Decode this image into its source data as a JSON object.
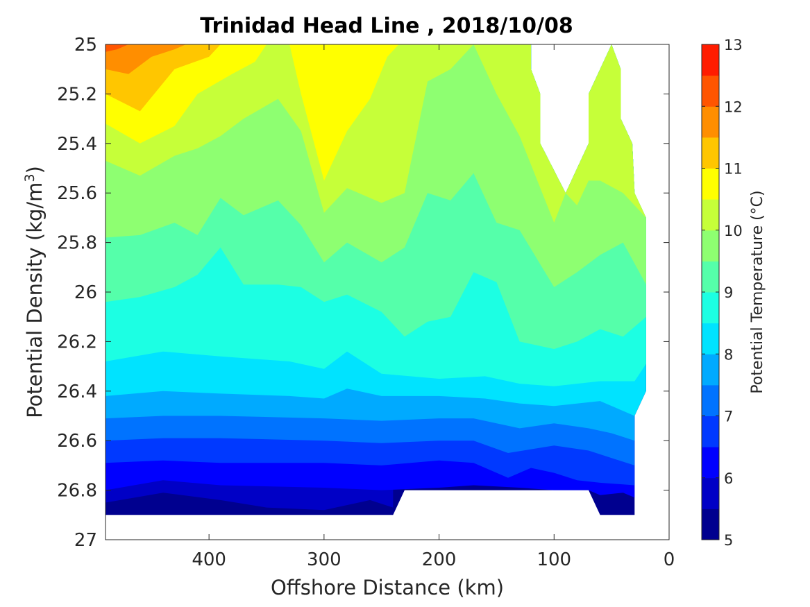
{
  "chart_data": {
    "type": "filled-contour",
    "title": "Trinidad Head Line , 2018/10/08",
    "xlabel": "Offshore Distance (km)",
    "ylabel": "Potential Density (kg/m",
    "ylabel_sup": "3",
    "ylabel_tail": ")",
    "colorbar_label": "Potential Temperature (°C)",
    "xlim": [
      490,
      0
    ],
    "ylim": [
      25,
      27
    ],
    "x_reversed": true,
    "y_reversed": true,
    "xticks": [
      400,
      300,
      200,
      100,
      0
    ],
    "xtick_labels": [
      "400",
      "300",
      "200",
      "100",
      "0"
    ],
    "yticks": [
      25,
      25.2,
      25.4,
      25.6,
      25.8,
      26,
      26.2,
      26.4,
      26.6,
      26.8,
      27
    ],
    "ytick_labels": [
      "25",
      "25.2",
      "25.4",
      "25.6",
      "25.8",
      "26",
      "26.2",
      "26.4",
      "26.6",
      "26.8",
      "27"
    ],
    "colorbar_range": [
      5,
      13
    ],
    "colorbar_ticks": [
      5,
      6,
      7,
      8,
      9,
      10,
      11,
      12,
      13
    ],
    "colorbar_tick_labels": [
      "5",
      "6",
      "7",
      "8",
      "9",
      "10",
      "11",
      "12",
      "13"
    ],
    "contour_levels": [
      5,
      5.5,
      6,
      6.5,
      7,
      7.5,
      8,
      8.5,
      9,
      9.5,
      10,
      10.5,
      11,
      11.5,
      12,
      12.5,
      13
    ],
    "level_colors": [
      "#00008f",
      "#0000c6",
      "#0000ff",
      "#0039ff",
      "#0073ff",
      "#00aaff",
      "#00e3ff",
      "#1cffe3",
      "#55ffaa",
      "#8eff71",
      "#c6ff39",
      "#ffff00",
      "#ffc600",
      "#ff8e00",
      "#ff5500",
      "#ff1c00",
      "#c60000",
      "#8f0000"
    ],
    "data_region": {
      "top_edge": [
        [
          490,
          25
        ],
        [
          120,
          25
        ],
        [
          120,
          25.1
        ],
        [
          112,
          25.2
        ],
        [
          112,
          25.4
        ],
        [
          90,
          25.6
        ],
        [
          70,
          25.4
        ],
        [
          70,
          25.2
        ],
        [
          50,
          25
        ],
        [
          42,
          25.1
        ],
        [
          42,
          25.3
        ],
        [
          32,
          25.4
        ],
        [
          30,
          25.6
        ],
        [
          20,
          25.7
        ],
        [
          20,
          26.4
        ],
        [
          30,
          26.5
        ]
      ],
      "bottom_edge": [
        [
          490,
          26.9
        ],
        [
          240,
          26.9
        ],
        [
          230,
          26.8
        ],
        [
          70,
          26.8
        ],
        [
          60,
          26.9
        ],
        [
          30,
          26.9
        ]
      ]
    },
    "contours": [
      {
        "level": 5.5,
        "x": [
          490,
          440,
          390,
          350,
          300,
          260,
          240
        ],
        "y": [
          26.85,
          26.81,
          26.84,
          26.87,
          26.88,
          26.84,
          26.87
        ]
      },
      {
        "level": 6.0,
        "x": [
          490,
          440,
          390,
          300,
          250,
          200,
          170,
          130,
          100,
          70,
          60,
          40,
          30
        ],
        "y": [
          26.8,
          26.76,
          26.78,
          26.79,
          26.8,
          26.79,
          26.78,
          26.79,
          26.8,
          26.8,
          26.82,
          26.81,
          26.83
        ]
      },
      {
        "level": 6.5,
        "x": [
          490,
          440,
          390,
          300,
          250,
          200,
          170,
          140,
          120,
          100,
          80,
          60,
          30
        ],
        "y": [
          26.69,
          26.68,
          26.69,
          26.69,
          26.7,
          26.68,
          26.69,
          26.75,
          26.71,
          26.73,
          26.76,
          26.77,
          26.78
        ]
      },
      {
        "level": 7.0,
        "x": [
          490,
          440,
          390,
          300,
          250,
          200,
          170,
          140,
          100,
          70,
          50,
          30
        ],
        "y": [
          26.6,
          26.59,
          26.59,
          26.6,
          26.61,
          26.6,
          26.6,
          26.65,
          26.62,
          26.64,
          26.67,
          26.7
        ]
      },
      {
        "level": 7.5,
        "x": [
          490,
          440,
          390,
          300,
          250,
          200,
          170,
          130,
          100,
          70,
          50,
          30
        ],
        "y": [
          26.51,
          26.5,
          26.5,
          26.51,
          26.52,
          26.51,
          26.51,
          26.55,
          26.53,
          26.55,
          26.57,
          26.6
        ]
      },
      {
        "level": 8.0,
        "x": [
          490,
          440,
          390,
          330,
          300,
          280,
          250,
          200,
          160,
          130,
          100,
          60,
          30,
          20
        ],
        "y": [
          26.42,
          26.4,
          26.41,
          26.42,
          26.43,
          26.39,
          26.42,
          26.42,
          26.43,
          26.45,
          26.46,
          26.44,
          26.5,
          26.4
        ]
      },
      {
        "level": 8.5,
        "x": [
          490,
          440,
          390,
          330,
          300,
          280,
          250,
          200,
          160,
          130,
          100,
          60,
          30,
          20
        ],
        "y": [
          26.28,
          26.24,
          26.26,
          26.28,
          26.31,
          26.24,
          26.33,
          26.35,
          26.34,
          26.37,
          26.38,
          26.36,
          26.36,
          26.29
        ]
      },
      {
        "level": 9.0,
        "x": [
          490,
          460,
          430,
          410,
          390,
          370,
          340,
          320,
          300,
          280,
          250,
          230,
          210,
          190,
          170,
          150,
          130,
          100,
          80,
          60,
          40,
          20
        ],
        "y": [
          26.04,
          26.02,
          25.98,
          25.93,
          25.82,
          25.97,
          25.97,
          25.98,
          26.04,
          26.01,
          26.08,
          26.18,
          26.12,
          26.1,
          25.92,
          25.96,
          26.2,
          26.23,
          26.2,
          26.15,
          26.18,
          26.1
        ]
      },
      {
        "level": 9.5,
        "x": [
          490,
          460,
          430,
          410,
          390,
          370,
          340,
          320,
          300,
          280,
          250,
          230,
          210,
          190,
          170,
          150,
          130,
          100,
          80,
          60,
          40,
          20
        ],
        "y": [
          25.78,
          25.77,
          25.72,
          25.77,
          25.62,
          25.69,
          25.63,
          25.73,
          25.88,
          25.8,
          25.88,
          25.82,
          25.6,
          25.63,
          25.52,
          25.72,
          25.75,
          25.98,
          25.92,
          25.85,
          25.8,
          25.97
        ]
      },
      {
        "level": 10.0,
        "x": [
          490,
          460,
          430,
          410,
          390,
          370,
          340,
          320,
          300,
          280,
          250,
          230,
          210,
          190,
          170,
          150,
          130,
          100,
          90,
          80,
          70,
          60,
          40,
          20
        ],
        "y": [
          25.47,
          25.53,
          25.45,
          25.42,
          25.37,
          25.3,
          25.22,
          25.35,
          25.68,
          25.58,
          25.64,
          25.6,
          25.15,
          25.1,
          25.0,
          25.2,
          25.37,
          25.72,
          25.6,
          25.65,
          25.55,
          25.55,
          25.6,
          25.7
        ]
      },
      {
        "level": 10.5,
        "x": [
          490,
          460,
          430,
          410,
          380,
          360,
          350,
          330,
          320,
          300,
          280,
          260,
          245,
          235
        ],
        "y": [
          25.32,
          25.4,
          25.33,
          25.2,
          25.12,
          25.07,
          25.0,
          25.0,
          25.2,
          25.55,
          25.35,
          25.22,
          25.05,
          25.0
        ]
      },
      {
        "level": 11.0,
        "x": [
          490,
          460,
          430,
          400,
          390
        ],
        "y": [
          25.2,
          25.27,
          25.1,
          25.05,
          25.0
        ]
      },
      {
        "level": 11.5,
        "x": [
          490,
          470,
          450,
          430,
          420
        ],
        "y": [
          25.1,
          25.12,
          25.05,
          25.02,
          25.0
        ]
      },
      {
        "level": 12.0,
        "x": [
          490,
          480,
          470
        ],
        "y": [
          25.03,
          25.02,
          25.0
        ]
      }
    ]
  }
}
